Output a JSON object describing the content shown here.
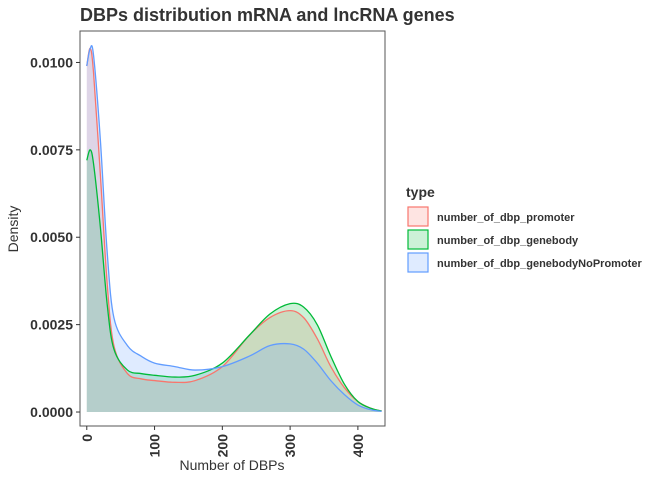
{
  "chart_data": {
    "type": "area",
    "title": "DBPs distribution mRNA and lncRNA genes",
    "xlabel": "Number of DBPs",
    "ylabel": "Density",
    "xlim": [
      -10,
      440
    ],
    "ylim": [
      -0.0004,
      0.0109
    ],
    "x_ticks": [
      0,
      100,
      200,
      300,
      400
    ],
    "y_ticks": [
      0.0,
      0.0025,
      0.005,
      0.0075,
      0.01
    ],
    "y_tick_labels": [
      "0.0000",
      "0.0025",
      "0.0050",
      "0.0075",
      "0.0100"
    ],
    "grid": false,
    "legend": {
      "title": "type",
      "position": "right"
    },
    "series": [
      {
        "name": "number_of_dbp_promoter",
        "color": "#F8766D",
        "x": [
          0,
          5,
          10,
          20,
          30,
          40,
          60,
          80,
          100,
          130,
          160,
          200,
          240,
          270,
          300,
          320,
          340,
          360,
          380,
          400,
          420,
          435
        ],
        "y": [
          0.0099,
          0.0104,
          0.0097,
          0.0068,
          0.0037,
          0.0019,
          0.0011,
          0.00095,
          0.0009,
          0.00085,
          0.0009,
          0.0013,
          0.0022,
          0.0027,
          0.0029,
          0.0027,
          0.0021,
          0.0013,
          0.0007,
          0.0003,
          0.0001,
          3e-05
        ]
      },
      {
        "name": "number_of_dbp_genebody",
        "color": "#00BA38",
        "x": [
          0,
          5,
          10,
          20,
          30,
          40,
          60,
          80,
          100,
          130,
          160,
          200,
          240,
          270,
          300,
          320,
          340,
          360,
          380,
          400,
          420,
          435
        ],
        "y": [
          0.0072,
          0.0075,
          0.0071,
          0.0053,
          0.0031,
          0.0018,
          0.0012,
          0.0011,
          0.00105,
          0.001,
          0.00105,
          0.0014,
          0.0022,
          0.0028,
          0.0031,
          0.003,
          0.0025,
          0.0016,
          0.0008,
          0.0003,
          0.0001,
          3e-05
        ]
      },
      {
        "name": "number_of_dbp_genebodyNoPromoter",
        "color": "#619CFF",
        "x": [
          0,
          5,
          10,
          20,
          30,
          40,
          60,
          80,
          100,
          130,
          160,
          200,
          240,
          270,
          300,
          320,
          340,
          360,
          380,
          400,
          420,
          435
        ],
        "y": [
          0.0099,
          0.0104,
          0.0102,
          0.0078,
          0.0046,
          0.0027,
          0.0019,
          0.0016,
          0.0014,
          0.0013,
          0.0012,
          0.0013,
          0.0016,
          0.0019,
          0.00195,
          0.0018,
          0.0014,
          0.0009,
          0.0005,
          0.0002,
          6e-05,
          2e-05
        ]
      }
    ]
  }
}
